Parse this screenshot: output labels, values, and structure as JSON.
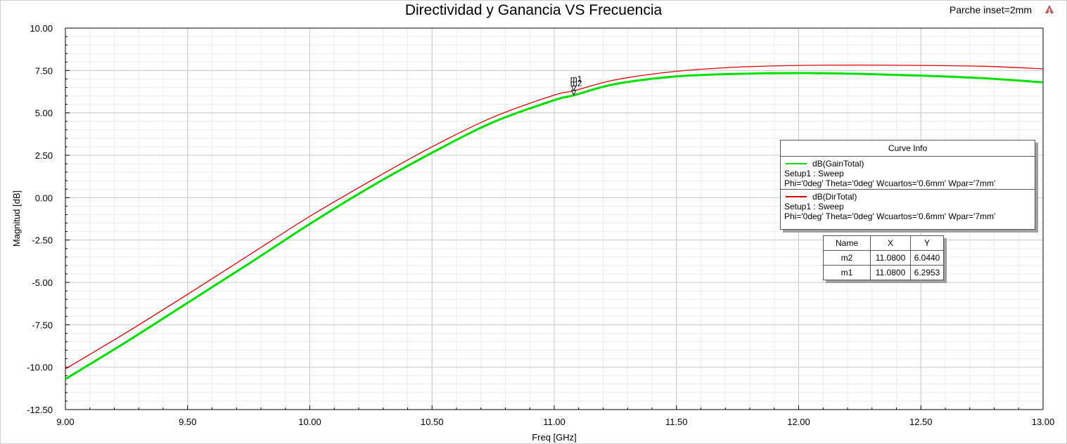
{
  "chart_data": {
    "type": "line",
    "title": "Directividad y Ganancia VS Frecuencia",
    "tag": "Parche inset=2mm",
    "xlabel": "Freq [GHz]",
    "ylabel": "Magnitud [dB]",
    "xlim": [
      9.0,
      13.0
    ],
    "ylim": [
      -12.5,
      10.0
    ],
    "xticks": [
      "9.00",
      "9.50",
      "10.00",
      "10.50",
      "11.00",
      "11.50",
      "12.00",
      "12.50",
      "13.00"
    ],
    "yticks": [
      "10.00",
      "7.50",
      "5.00",
      "2.50",
      "0.00",
      "-2.50",
      "-5.00",
      "-7.50",
      "-10.00",
      "-12.50"
    ],
    "grid": true,
    "legend_position": "right",
    "series": [
      {
        "name": "dB(GainTotal)",
        "color": "#00e000",
        "setup": "Setup1 : Sweep",
        "params": "Phi='0deg' Theta='0deg' Wcuartos='0.6mm' Wpar='7mm'",
        "x": [
          9.0,
          9.25,
          9.5,
          9.75,
          10.0,
          10.25,
          10.5,
          10.75,
          11.0,
          11.08,
          11.25,
          11.5,
          11.75,
          12.0,
          12.25,
          12.5,
          12.75,
          13.0
        ],
        "y": [
          -10.7,
          -8.5,
          -6.2,
          -3.9,
          -1.55,
          0.65,
          2.65,
          4.45,
          5.75,
          6.04,
          6.7,
          7.15,
          7.3,
          7.35,
          7.3,
          7.2,
          7.05,
          6.8
        ]
      },
      {
        "name": "dB(DirTotal)",
        "color": "#e00000",
        "setup": "Setup1 : Sweep",
        "params": "Phi='0deg' Theta='0deg' Wcuartos='0.6mm' Wpar='7mm'",
        "x": [
          9.0,
          9.25,
          9.5,
          9.75,
          10.0,
          10.25,
          10.5,
          10.75,
          11.0,
          11.08,
          11.25,
          11.5,
          11.75,
          12.0,
          12.25,
          12.5,
          12.75,
          13.0
        ],
        "y": [
          -10.1,
          -7.95,
          -5.7,
          -3.4,
          -1.1,
          1.0,
          3.0,
          4.75,
          6.05,
          6.3,
          6.95,
          7.45,
          7.7,
          7.8,
          7.82,
          7.8,
          7.75,
          7.6
        ]
      }
    ],
    "markers": [
      {
        "name": "m2",
        "x": "11.0800",
        "y": "6.0440",
        "xv": 11.08,
        "yv": 6.044
      },
      {
        "name": "m1",
        "x": "11.0800",
        "y": "6.2953",
        "xv": 11.08,
        "yv": 6.2953
      }
    ]
  },
  "legend": {
    "header": "Curve Info"
  },
  "marker_table": {
    "headers": [
      "Name",
      "X",
      "Y"
    ]
  }
}
